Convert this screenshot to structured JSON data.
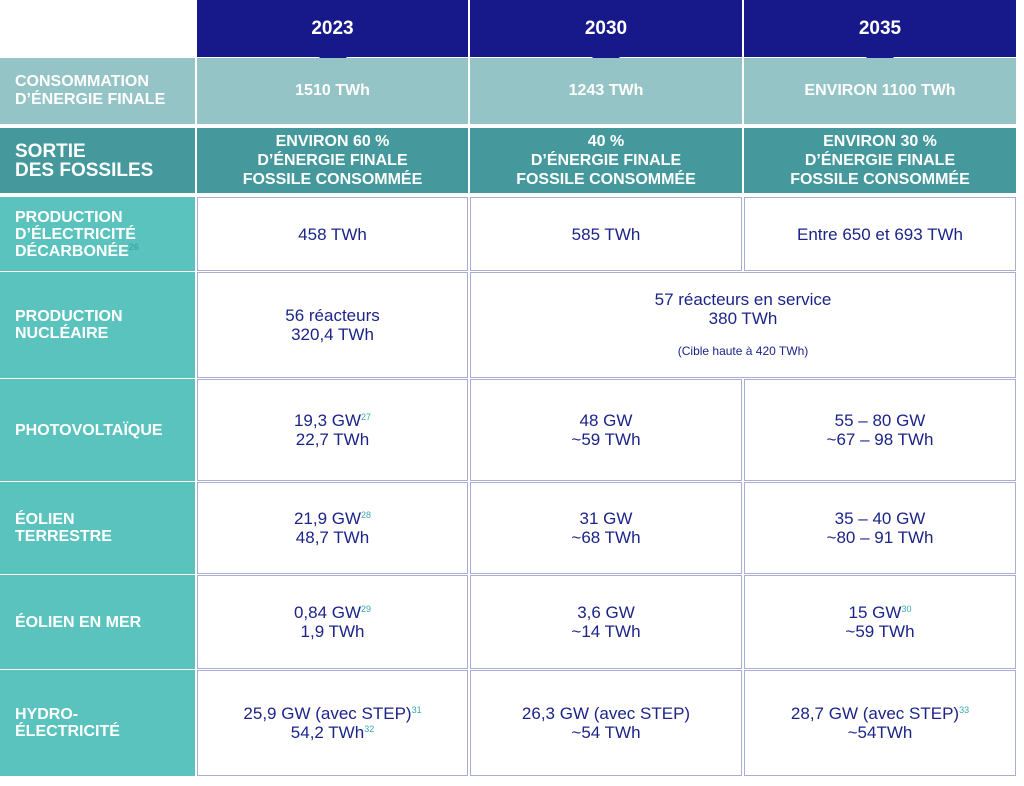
{
  "columns": [
    "2023",
    "2030",
    "2035"
  ],
  "rows": [
    {
      "label": [
        {
          "text": "CONSOMMATION"
        },
        {
          "text": "D’ÉNERGIE FINALE"
        }
      ],
      "cells": [
        {
          "lines": [
            {
              "text": "1510 TWh"
            }
          ]
        },
        {
          "lines": [
            {
              "text": "1243 TWh"
            }
          ]
        },
        {
          "lines": [
            {
              "text": "ENVIRON 1100 TWh"
            }
          ]
        }
      ]
    },
    {
      "label": [
        {
          "text": "SORTIE"
        },
        {
          "text": "DES FOSSILES"
        }
      ],
      "cells": [
        {
          "lines": [
            {
              "text": "ENVIRON 60 %"
            },
            {
              "text": "D’ÉNERGIE FINALE"
            },
            {
              "text": "FOSSILE CONSOMMÉE"
            }
          ]
        },
        {
          "lines": [
            {
              "text": "40 %"
            },
            {
              "text": "D’ÉNERGIE FINALE"
            },
            {
              "text": "FOSSILE CONSOMMÉE"
            }
          ]
        },
        {
          "lines": [
            {
              "text": "ENVIRON 30 %"
            },
            {
              "text": "D’ÉNERGIE FINALE"
            },
            {
              "text": "FOSSILE CONSOMMÉE"
            }
          ]
        }
      ]
    },
    {
      "label": [
        {
          "text": "PRODUCTION"
        },
        {
          "text": "D’ÉLECTRICITÉ"
        },
        {
          "text": "DÉCARBONÉE",
          "sup": "26"
        }
      ],
      "cells": [
        {
          "lines": [
            {
              "text": "458 TWh"
            }
          ]
        },
        {
          "lines": [
            {
              "text": "585 TWh"
            }
          ]
        },
        {
          "lines": [
            {
              "text": "Entre 650 et 693 TWh"
            }
          ]
        }
      ]
    },
    {
      "label": [
        {
          "text": "PRODUCTION"
        },
        {
          "text": "NUCLÉAIRE"
        }
      ],
      "cells": [
        {
          "lines": [
            {
              "text": "56 réacteurs"
            },
            {
              "text": "320,4 TWh"
            }
          ]
        },
        {
          "lines": [
            {
              "text": "57 réacteurs en service"
            },
            {
              "text": "380 TWh"
            }
          ],
          "note": "(Cible haute à 420 TWh)"
        }
      ]
    },
    {
      "label": [
        {
          "text": "PHOTOVOLTAÏQUE"
        }
      ],
      "cells": [
        {
          "lines": [
            {
              "text": "19,3 GW",
              "sup": "27"
            },
            {
              "text": "22,7 TWh"
            }
          ]
        },
        {
          "lines": [
            {
              "text": "48 GW"
            },
            {
              "text": "~59 TWh"
            }
          ]
        },
        {
          "lines": [
            {
              "text": "55 – 80 GW"
            },
            {
              "text": "~67 – 98 TWh"
            }
          ]
        }
      ]
    },
    {
      "label": [
        {
          "text": "ÉOLIEN"
        },
        {
          "text": "TERRESTRE"
        }
      ],
      "cells": [
        {
          "lines": [
            {
              "text": "21,9 GW",
              "sup": "28"
            },
            {
              "text": "48,7 TWh"
            }
          ]
        },
        {
          "lines": [
            {
              "text": "31 GW"
            },
            {
              "text": "~68 TWh"
            }
          ]
        },
        {
          "lines": [
            {
              "text": "35 – 40 GW"
            },
            {
              "text": "~80 – 91 TWh"
            }
          ]
        }
      ]
    },
    {
      "label": [
        {
          "text": "ÉOLIEN EN MER"
        }
      ],
      "cells": [
        {
          "lines": [
            {
              "text": "0,84 GW",
              "sup": "29"
            },
            {
              "text": "1,9 TWh"
            }
          ]
        },
        {
          "lines": [
            {
              "text": "3,6 GW"
            },
            {
              "text": "~14 TWh"
            }
          ]
        },
        {
          "lines": [
            {
              "text": "15 GW",
              "sup": "30"
            },
            {
              "text": "~59 TWh"
            }
          ]
        }
      ]
    },
    {
      "label": [
        {
          "text": "HYDRO-"
        },
        {
          "text": "ÉLECTRICITÉ"
        }
      ],
      "cells": [
        {
          "lines": [
            {
              "text": "25,9 GW (avec STEP)",
              "sup": "31"
            },
            {
              "text": "54,2 TWh",
              "sup": "32"
            }
          ]
        },
        {
          "lines": [
            {
              "text": "26,3 GW (avec STEP)"
            },
            {
              "text": "~54 TWh"
            }
          ]
        },
        {
          "lines": [
            {
              "text": "28,7 GW (avec STEP)",
              "sup": "33"
            },
            {
              "text": "~54TWh"
            }
          ]
        }
      ]
    }
  ]
}
